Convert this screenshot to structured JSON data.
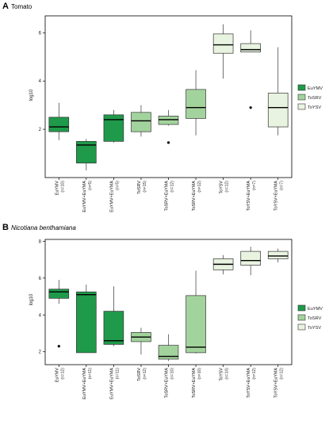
{
  "chart_data": [
    {
      "panel": "A",
      "title": "Tomato",
      "title_italic": false,
      "type": "box",
      "ylabel": "log10",
      "ylim": [
        0,
        6.7
      ],
      "yticks": [
        2,
        4,
        6
      ],
      "legend": [
        "EuYMV",
        "ToSRV",
        "ToYSV"
      ],
      "legend_position": "right",
      "boxes": [
        {
          "label": "EuYMV",
          "n": "(n=10)",
          "color": "#1f9a4a",
          "whisker_low": 1.55,
          "q1": 1.9,
          "median": 2.1,
          "q3": 2.5,
          "whisker_high": 3.1,
          "outliers": []
        },
        {
          "label": "EuYMV+EuYMA",
          "n": "(n=5)",
          "color": "#1f9a4a",
          "whisker_low": 0.3,
          "q1": 0.6,
          "median": 1.35,
          "q3": 1.5,
          "whisker_high": 1.6,
          "outliers": []
        },
        {
          "label": "EuYMV+EuYMA",
          "n": "(n=5)",
          "color": "#1f9a4a",
          "whisker_low": 1.45,
          "q1": 1.5,
          "median": 2.4,
          "q3": 2.6,
          "whisker_high": 2.8,
          "outliers": []
        },
        {
          "label": "ToSRV",
          "n": "(n=15)",
          "color": "#a3d39c",
          "whisker_low": 1.7,
          "q1": 1.9,
          "median": 2.35,
          "q3": 2.7,
          "whisker_high": 3.0,
          "outliers": []
        },
        {
          "label": "ToSRV+EuYMA",
          "n": "(n=12)",
          "color": "#a3d39c",
          "whisker_low": 2.15,
          "q1": 2.2,
          "median": 2.4,
          "q3": 2.55,
          "whisker_high": 2.8,
          "outliers": [
            1.45
          ]
        },
        {
          "label": "ToSRV+EuYMA",
          "n": "(n=12)",
          "color": "#a3d39c",
          "whisker_low": 1.75,
          "q1": 2.45,
          "median": 2.9,
          "q3": 3.65,
          "whisker_high": 4.45,
          "outliers": []
        },
        {
          "label": "ToYSV",
          "n": "(n=12)",
          "color": "#e8f3e0",
          "whisker_low": 4.1,
          "q1": 5.15,
          "median": 5.5,
          "q3": 5.95,
          "whisker_high": 6.35,
          "outliers": []
        },
        {
          "label": "ToYSV+EuYMA",
          "n": "(n=7)",
          "color": "#e8f3e0",
          "whisker_low": 5.2,
          "q1": 5.2,
          "median": 5.3,
          "q3": 5.55,
          "whisker_high": 6.1,
          "outliers": [
            2.9
          ]
        },
        {
          "label": "ToYSV+EuYMA",
          "n": "(n=7)",
          "color": "#e8f3e0",
          "whisker_low": 1.75,
          "q1": 2.1,
          "median": 2.9,
          "q3": 3.5,
          "whisker_high": 5.4,
          "outliers": []
        }
      ]
    },
    {
      "panel": "B",
      "title": "Nicotiana benthamiana",
      "title_italic": true,
      "type": "box",
      "ylabel": "log10",
      "ylim": [
        1.3,
        8.1
      ],
      "yticks": [
        2,
        4,
        6,
        8
      ],
      "legend": [
        "EuYMV",
        "ToSRV",
        "ToYSV"
      ],
      "legend_position": "right",
      "boxes": [
        {
          "label": "EuYMV",
          "n": "(n=12)",
          "color": "#1f9a4a",
          "whisker_low": 4.6,
          "q1": 4.9,
          "median": 5.25,
          "q3": 5.4,
          "whisker_high": 5.9,
          "outliers": [
            2.3
          ]
        },
        {
          "label": "EuYMV+EuYMA",
          "n": "(n=11)",
          "color": "#1f9a4a",
          "whisker_low": 1.95,
          "q1": 1.95,
          "median": 5.1,
          "q3": 5.25,
          "whisker_high": 5.65,
          "outliers": []
        },
        {
          "label": "EuYMV+EuYMA",
          "n": "(n=11)",
          "color": "#1f9a4a",
          "whisker_low": 2.3,
          "q1": 2.4,
          "median": 2.6,
          "q3": 4.2,
          "whisker_high": 5.55,
          "outliers": []
        },
        {
          "label": "ToSRV",
          "n": "(n=12)",
          "color": "#a3d39c",
          "whisker_low": 1.85,
          "q1": 2.55,
          "median": 2.8,
          "q3": 3.05,
          "whisker_high": 3.3,
          "outliers": []
        },
        {
          "label": "ToSRV+EuYMA",
          "n": "(n=10)",
          "color": "#a3d39c",
          "whisker_low": 1.5,
          "q1": 1.6,
          "median": 1.75,
          "q3": 2.35,
          "whisker_high": 2.95,
          "outliers": []
        },
        {
          "label": "ToSRV+EuYMA",
          "n": "(n=10)",
          "color": "#a3d39c",
          "whisker_low": 1.9,
          "q1": 1.95,
          "median": 2.25,
          "q3": 5.05,
          "whisker_high": 6.4,
          "outliers": []
        },
        {
          "label": "ToYSV",
          "n": "(n=14)",
          "color": "#e8f3e0",
          "whisker_low": 6.2,
          "q1": 6.45,
          "median": 6.75,
          "q3": 7.05,
          "whisker_high": 7.25,
          "outliers": []
        },
        {
          "label": "ToYSV+EuYMA",
          "n": "(n=12)",
          "color": "#e8f3e0",
          "whisker_low": 6.15,
          "q1": 6.7,
          "median": 6.95,
          "q3": 7.45,
          "whisker_high": 7.7,
          "outliers": []
        },
        {
          "label": "ToYSV+EuYMA",
          "n": "(n=12)",
          "color": "#e8f3e0",
          "whisker_low": 6.85,
          "q1": 7.05,
          "median": 7.2,
          "q3": 7.45,
          "whisker_high": 7.6,
          "outliers": []
        }
      ]
    }
  ],
  "legend_colors": {
    "EuYMV": "#1f9a4a",
    "ToSRV": "#a3d39c",
    "ToYSV": "#e8f3e0"
  }
}
